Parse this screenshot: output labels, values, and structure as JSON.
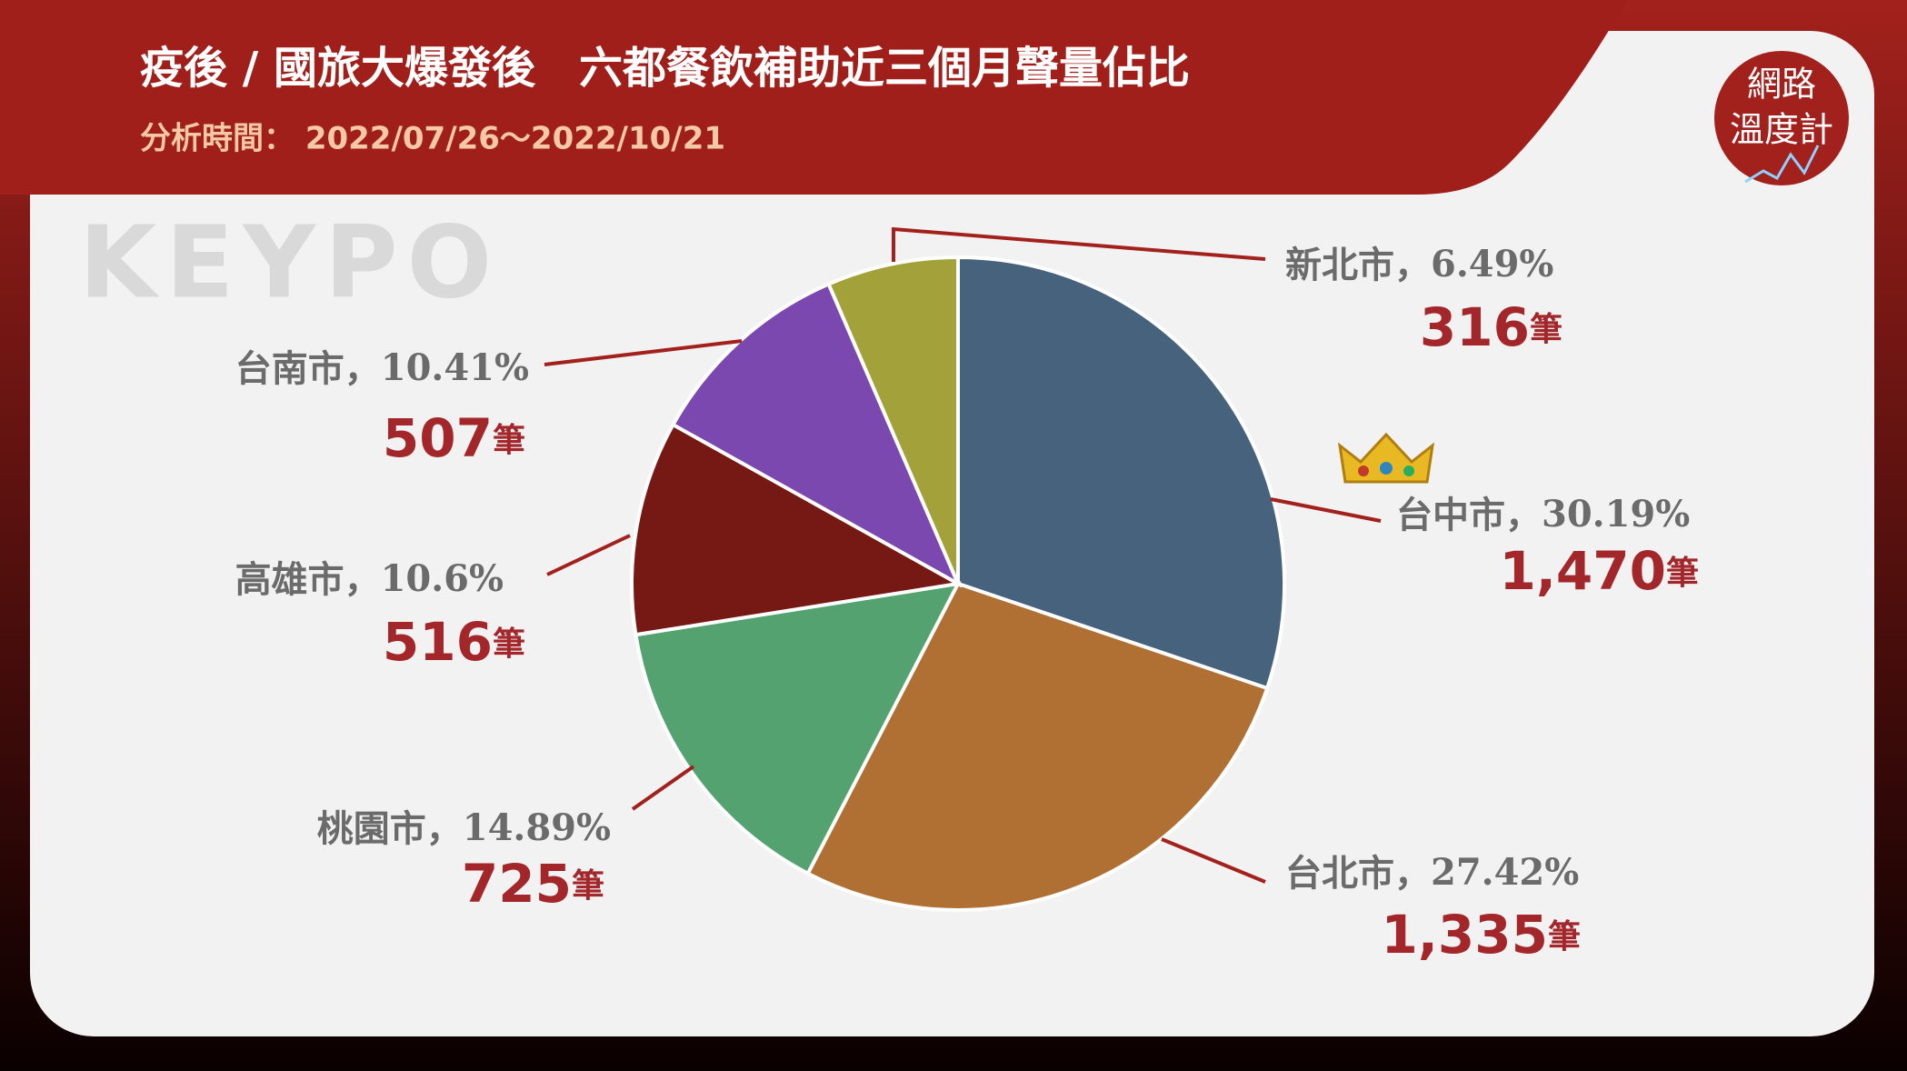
{
  "branding": {
    "watermark": "KEYPO",
    "logo_line1": "網路",
    "logo_line2": "溫度計"
  },
  "chart_data": {
    "type": "pie",
    "title": "疫後 / 國旅大爆發後　六都餐飲補助近三個月聲量佔比",
    "subtitle": "分析時間： 2022/07/26～2022/10/21",
    "categories": [
      "台中市",
      "台北市",
      "桃園市",
      "高雄市",
      "台南市",
      "新北市"
    ],
    "values": [
      30.19,
      27.42,
      14.89,
      10.6,
      10.41,
      6.49
    ],
    "value_labels": [
      "30.19%",
      "27.42%",
      "14.89%",
      "10.6%",
      "10.41%",
      "6.49%"
    ],
    "separator": "，",
    "counts": [
      1470,
      1335,
      725,
      516,
      507,
      316
    ],
    "count_labels": [
      "1,470",
      "1,335",
      "725",
      "516",
      "507",
      "316"
    ],
    "count_unit": "筆",
    "colors": [
      "#46627c",
      "#b07033",
      "#55a271",
      "#761813",
      "#7b48b0",
      "#a3a139"
    ]
  }
}
